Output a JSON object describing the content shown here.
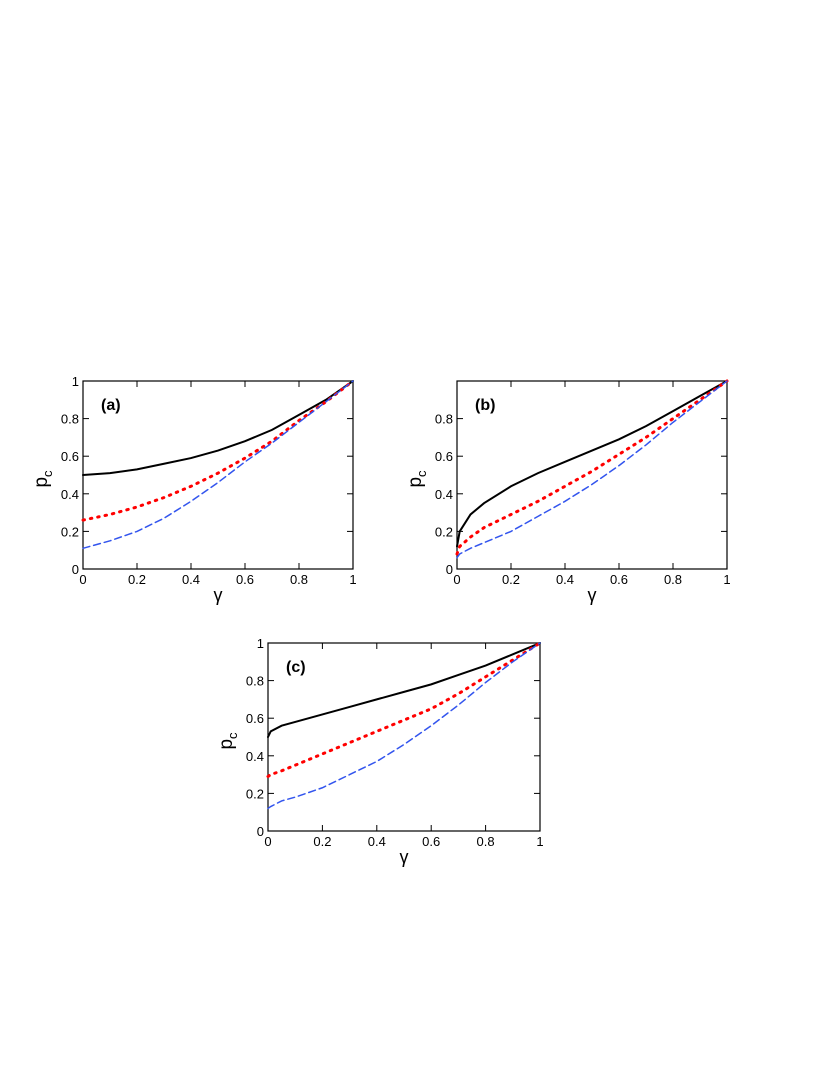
{
  "chart_data": [
    {
      "type": "line",
      "label": "(a)",
      "xlabel": "γ",
      "ylabel": {
        "text": "p",
        "subscript": "c"
      },
      "xlim": [
        0,
        1
      ],
      "ylim": [
        0,
        1
      ],
      "xticks": [
        0,
        0.2,
        0.4,
        0.6,
        0.8,
        1
      ],
      "yticks": [
        0,
        0.2,
        0.4,
        0.6,
        0.8,
        1
      ],
      "x": [
        0,
        0.1,
        0.2,
        0.3,
        0.4,
        0.5,
        0.6,
        0.7,
        0.8,
        0.9,
        1
      ],
      "series": [
        {
          "color": "#000000",
          "dash": "solid",
          "values": [
            0.5,
            0.51,
            0.53,
            0.56,
            0.59,
            0.63,
            0.68,
            0.74,
            0.82,
            0.9,
            1
          ]
        },
        {
          "color": "#ff0000",
          "dash": "dotted",
          "values": [
            0.26,
            0.29,
            0.33,
            0.38,
            0.44,
            0.51,
            0.59,
            0.68,
            0.79,
            0.89,
            1
          ]
        },
        {
          "color": "#3355ee",
          "dash": "dashed",
          "values": [
            0.11,
            0.15,
            0.2,
            0.27,
            0.36,
            0.46,
            0.57,
            0.67,
            0.78,
            0.89,
            1
          ]
        }
      ]
    },
    {
      "type": "line",
      "label": "(b)",
      "xlabel": "γ",
      "ylabel": {
        "text": "p",
        "subscript": "c"
      },
      "xlim": [
        0,
        1
      ],
      "ylim": [
        0,
        1
      ],
      "xticks": [
        0,
        0.2,
        0.4,
        0.6,
        0.8,
        1
      ],
      "yticks": [
        0,
        0.2,
        0.4,
        0.6,
        0.8
      ],
      "x": [
        0,
        0.01,
        0.05,
        0.1,
        0.2,
        0.3,
        0.4,
        0.5,
        0.6,
        0.7,
        0.8,
        0.9,
        1
      ],
      "series": [
        {
          "color": "#000000",
          "dash": "solid",
          "values": [
            0.12,
            0.2,
            0.29,
            0.35,
            0.44,
            0.51,
            0.57,
            0.63,
            0.69,
            0.76,
            0.84,
            0.92,
            1
          ]
        },
        {
          "color": "#ff0000",
          "dash": "dotted",
          "values": [
            0.08,
            0.12,
            0.17,
            0.22,
            0.29,
            0.36,
            0.44,
            0.52,
            0.61,
            0.7,
            0.8,
            0.9,
            1
          ]
        },
        {
          "color": "#3355ee",
          "dash": "dashed",
          "values": [
            0.06,
            0.08,
            0.11,
            0.14,
            0.2,
            0.28,
            0.36,
            0.45,
            0.55,
            0.66,
            0.78,
            0.89,
            1
          ]
        }
      ]
    },
    {
      "type": "line",
      "label": "(c)",
      "xlabel": "γ",
      "ylabel": {
        "text": "p",
        "subscript": "c"
      },
      "xlim": [
        0,
        1
      ],
      "ylim": [
        0,
        1
      ],
      "xticks": [
        0,
        0.2,
        0.4,
        0.6,
        0.8,
        1
      ],
      "yticks": [
        0,
        0.2,
        0.4,
        0.6,
        0.8,
        1
      ],
      "x": [
        0,
        0.01,
        0.05,
        0.1,
        0.2,
        0.3,
        0.4,
        0.5,
        0.6,
        0.7,
        0.8,
        0.9,
        1
      ],
      "series": [
        {
          "color": "#000000",
          "dash": "solid",
          "values": [
            0.5,
            0.53,
            0.56,
            0.58,
            0.62,
            0.66,
            0.7,
            0.74,
            0.78,
            0.83,
            0.88,
            0.94,
            1
          ]
        },
        {
          "color": "#ff0000",
          "dash": "dotted",
          "values": [
            0.29,
            0.3,
            0.32,
            0.35,
            0.41,
            0.47,
            0.53,
            0.59,
            0.65,
            0.73,
            0.82,
            0.91,
            1
          ]
        },
        {
          "color": "#3355ee",
          "dash": "dashed",
          "values": [
            0.12,
            0.13,
            0.16,
            0.18,
            0.23,
            0.3,
            0.37,
            0.46,
            0.56,
            0.67,
            0.79,
            0.9,
            1
          ]
        }
      ]
    }
  ]
}
